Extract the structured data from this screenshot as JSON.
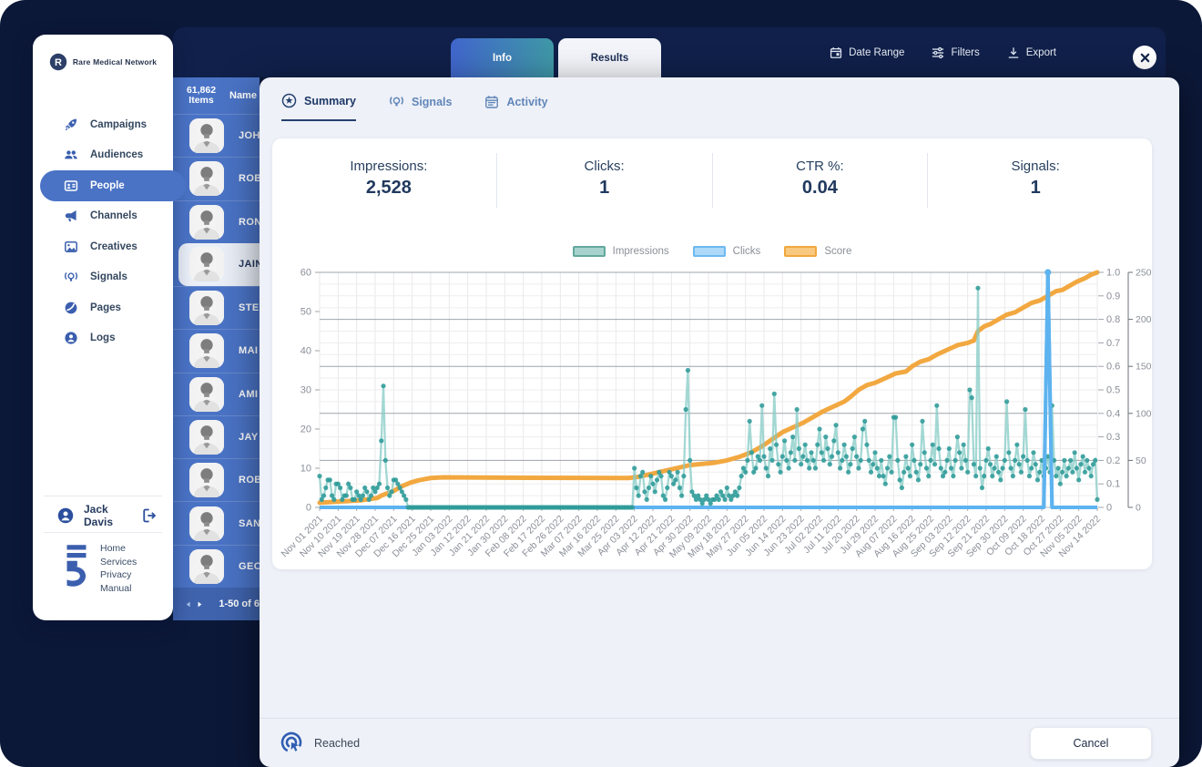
{
  "colors": {
    "bg_navy": "#0c1838",
    "panel_blue": "#4a73c5",
    "accent_blue": "#3b5fae",
    "modal_bg": "#eef1f8",
    "impressions_dot": "#2f9b98",
    "impressions_line": "#84cbc5",
    "clicks": "#5db3ef",
    "score": "#f2a840"
  },
  "sidebar": {
    "brand": "Rare Medical Network",
    "items": [
      {
        "label": "Campaigns"
      },
      {
        "label": "Audiences"
      },
      {
        "label": "People"
      },
      {
        "label": "Channels"
      },
      {
        "label": "Creatives"
      },
      {
        "label": "Signals"
      },
      {
        "label": "Pages"
      },
      {
        "label": "Logs"
      }
    ],
    "active_item": "People",
    "user": "Jack Davis",
    "footer_links": [
      {
        "label": "Home"
      },
      {
        "label": "Services"
      },
      {
        "label": "Privacy"
      },
      {
        "label": "Manual"
      }
    ]
  },
  "people": {
    "count_line1": "61,862",
    "count_line2": "Items",
    "name_header": "Name",
    "rows": [
      {
        "name": "JOH"
      },
      {
        "name": "ROB"
      },
      {
        "name": "RON"
      },
      {
        "name": "JAIN"
      },
      {
        "name": "STE"
      },
      {
        "name": "MAI"
      },
      {
        "name": "AMI"
      },
      {
        "name": "JAY"
      },
      {
        "name": "ROB"
      },
      {
        "name": "SAN"
      },
      {
        "name": "GEO"
      }
    ],
    "selected_index": 3,
    "pagination": "1-50 of 6"
  },
  "modal": {
    "tabs": {
      "info": "Info",
      "results": "Results"
    },
    "controls": {
      "date_range": "Date Range",
      "filters": "Filters",
      "export": "Export"
    },
    "inner_tabs": [
      {
        "label": "Summary"
      },
      {
        "label": "Signals"
      },
      {
        "label": "Activity"
      }
    ],
    "stats": [
      {
        "label": "Impressions:",
        "value": "2,528"
      },
      {
        "label": "Clicks:",
        "value": "1"
      },
      {
        "label": "CTR %:",
        "value": "0.04"
      },
      {
        "label": "Signals:",
        "value": "1"
      }
    ],
    "footer": {
      "status": "Reached",
      "cancel": "Cancel"
    }
  },
  "chart_data": {
    "type": "line",
    "x_days_span": 378,
    "x_tick_step_days": 9,
    "x_tick_labels": [
      "Nov 01 2021",
      "Nov 10 2021",
      "Nov 19 2021",
      "Nov 28 2021",
      "Dec 07 2021",
      "Dec 16 2021",
      "Dec 25 2021",
      "Jan 03 2022",
      "Jan 12 2022",
      "Jan 21 2022",
      "Jan 30 2022",
      "Feb 08 2022",
      "Feb 17 2022",
      "Feb 26 2022",
      "Mar 07 2022",
      "Mar 16 2022",
      "Mar 25 2022",
      "Apr 03 2022",
      "Apr 12 2022",
      "Apr 21 2022",
      "Apr 30 2022",
      "May 09 2022",
      "May 18 2022",
      "May 27 2022",
      "Jun 05 2022",
      "Jun 14 2022",
      "Jun 23 2022",
      "Jul 02 2022",
      "Jul 11 2022",
      "Jul 20 2022",
      "Jul 29 2022",
      "Aug 07 2022",
      "Aug 16 2022",
      "Aug 25 2022",
      "Sep 03 2022",
      "Sep 12 2022",
      "Sep 21 2022",
      "Sep 30 2022",
      "Oct 09 2022",
      "Oct 18 2022",
      "Oct 27 2022",
      "Nov 05 2022",
      "Nov 14 2022"
    ],
    "y_left": {
      "min": 0,
      "max": 60,
      "ticks": [
        0,
        10,
        20,
        30,
        40,
        50,
        60
      ]
    },
    "y_right_ratio": {
      "min": 0,
      "max": 1,
      "ticks": [
        "0",
        "0.1",
        "0.2",
        "0.3",
        "0.4",
        "0.5",
        "0.6",
        "0.7",
        "0.8",
        "0.9",
        "1.0"
      ]
    },
    "y_right_count": {
      "min": 0,
      "max": 250,
      "ticks": [
        0,
        50,
        100,
        150,
        200,
        250
      ]
    },
    "legend": [
      {
        "label": "Impressions",
        "fill": "#a7d3cc",
        "border": "#63a89e"
      },
      {
        "label": "Clicks",
        "fill": "#aed9f8",
        "border": "#6db9f1"
      },
      {
        "label": "Score",
        "fill": "#f8c97e",
        "border": "#f0a73e"
      }
    ],
    "series": [
      {
        "name": "Impressions",
        "axis": "left",
        "daily_values": [
          8,
          2,
          3,
          5,
          7,
          7,
          3,
          2,
          6,
          6,
          5,
          2,
          3,
          3,
          6,
          5,
          2,
          2,
          4,
          3,
          2,
          3,
          5,
          4,
          2,
          3,
          5,
          4,
          5,
          6,
          17,
          31,
          12,
          5,
          3,
          4,
          7,
          7,
          6,
          5,
          4,
          3,
          2,
          0,
          0,
          0,
          0,
          0,
          0,
          0,
          0,
          0,
          0,
          0,
          0,
          0,
          0,
          0,
          0,
          0,
          0,
          0,
          0,
          0,
          0,
          0,
          0,
          0,
          0,
          0,
          0,
          0,
          0,
          0,
          0,
          0,
          0,
          0,
          0,
          0,
          0,
          0,
          0,
          0,
          0,
          0,
          0,
          0,
          0,
          0,
          0,
          0,
          0,
          0,
          0,
          0,
          0,
          0,
          0,
          0,
          0,
          0,
          0,
          0,
          0,
          0,
          0,
          0,
          0,
          0,
          0,
          0,
          0,
          0,
          0,
          0,
          0,
          0,
          0,
          0,
          0,
          0,
          0,
          0,
          0,
          0,
          0,
          0,
          0,
          0,
          0,
          0,
          0,
          0,
          0,
          0,
          0,
          0,
          0,
          0,
          0,
          0,
          0,
          0,
          0,
          0,
          0,
          0,
          0,
          0,
          0,
          0,
          0,
          10,
          5,
          3,
          8,
          9,
          4,
          2,
          5,
          8,
          6,
          4,
          7,
          9,
          8,
          3,
          2,
          5,
          9,
          8,
          6,
          7,
          9,
          5,
          3,
          8,
          25,
          35,
          12,
          4,
          3,
          2,
          3,
          2,
          1,
          2,
          3,
          2,
          1,
          2,
          2,
          3,
          2,
          4,
          3,
          2,
          5,
          3,
          2,
          3,
          4,
          3,
          5,
          8,
          10,
          9,
          12,
          22,
          14,
          9,
          10,
          13,
          12,
          26,
          13,
          10,
          8,
          15,
          12,
          29,
          16,
          11,
          9,
          13,
          17,
          12,
          10,
          14,
          18,
          12,
          25,
          15,
          11,
          13,
          16,
          12,
          10,
          14,
          12,
          10,
          16,
          20,
          14,
          12,
          18,
          15,
          11,
          13,
          17,
          21,
          14,
          10,
          12,
          16,
          13,
          9,
          11,
          15,
          18,
          13,
          10,
          12,
          20,
          22,
          16,
          12,
          9,
          11,
          14,
          10,
          8,
          12,
          8,
          6,
          10,
          13,
          9,
          23,
          23,
          12,
          7,
          5,
          9,
          13,
          10,
          8,
          16,
          12,
          9,
          7,
          11,
          22,
          14,
          10,
          8,
          12,
          16,
          11,
          26,
          15,
          10,
          8,
          9,
          12,
          15,
          10,
          8,
          12,
          18,
          14,
          10,
          16,
          12,
          9,
          30,
          28,
          11,
          8,
          56,
          10,
          5,
          8,
          12,
          15,
          11,
          8,
          10,
          13,
          9,
          7,
          10,
          12,
          27,
          14,
          10,
          8,
          12,
          16,
          11,
          9,
          13,
          25,
          12,
          8,
          10,
          14,
          11,
          7,
          9,
          12,
          8,
          10,
          13,
          9,
          26,
          12,
          8,
          10,
          6,
          9,
          12,
          8,
          10,
          12,
          9,
          14,
          10,
          7,
          11,
          13,
          9,
          12,
          10,
          8,
          11,
          12,
          2
        ]
      },
      {
        "name": "Clicks",
        "axis": "right_ratio",
        "points": [
          [
            0,
            0
          ],
          [
            352,
            0
          ],
          [
            354,
            1
          ],
          [
            356,
            0
          ],
          [
            378,
            0
          ]
        ],
        "spike_day": 354,
        "spike_value": 1
      },
      {
        "name": "Score",
        "axis": "right_ratio",
        "points": [
          [
            0,
            0.02
          ],
          [
            10,
            0.025
          ],
          [
            20,
            0.03
          ],
          [
            28,
            0.04
          ],
          [
            30,
            0.05
          ],
          [
            33,
            0.06
          ],
          [
            36,
            0.07
          ],
          [
            40,
            0.09
          ],
          [
            44,
            0.105
          ],
          [
            48,
            0.115
          ],
          [
            54,
            0.125
          ],
          [
            60,
            0.128
          ],
          [
            100,
            0.126
          ],
          [
            150,
            0.125
          ],
          [
            155,
            0.13
          ],
          [
            160,
            0.14
          ],
          [
            165,
            0.15
          ],
          [
            170,
            0.16
          ],
          [
            175,
            0.17
          ],
          [
            180,
            0.18
          ],
          [
            186,
            0.185
          ],
          [
            192,
            0.19
          ],
          [
            198,
            0.2
          ],
          [
            204,
            0.215
          ],
          [
            210,
            0.235
          ],
          [
            215,
            0.26
          ],
          [
            220,
            0.29
          ],
          [
            225,
            0.32
          ],
          [
            230,
            0.34
          ],
          [
            235,
            0.36
          ],
          [
            240,
            0.385
          ],
          [
            245,
            0.41
          ],
          [
            250,
            0.43
          ],
          [
            255,
            0.45
          ],
          [
            258,
            0.47
          ],
          [
            262,
            0.5
          ],
          [
            266,
            0.52
          ],
          [
            270,
            0.53
          ],
          [
            275,
            0.55
          ],
          [
            280,
            0.57
          ],
          [
            285,
            0.578
          ],
          [
            288,
            0.6
          ],
          [
            292,
            0.62
          ],
          [
            296,
            0.63
          ],
          [
            300,
            0.65
          ],
          [
            305,
            0.67
          ],
          [
            310,
            0.69
          ],
          [
            315,
            0.7
          ],
          [
            318,
            0.71
          ],
          [
            320,
            0.75
          ],
          [
            323,
            0.77
          ],
          [
            326,
            0.78
          ],
          [
            330,
            0.8
          ],
          [
            334,
            0.82
          ],
          [
            338,
            0.83
          ],
          [
            342,
            0.85
          ],
          [
            346,
            0.87
          ],
          [
            350,
            0.88
          ],
          [
            354,
            0.9
          ],
          [
            358,
            0.92
          ],
          [
            361,
            0.925
          ],
          [
            364,
            0.94
          ],
          [
            368,
            0.96
          ],
          [
            372,
            0.975
          ],
          [
            375,
            0.99
          ],
          [
            378,
            1.0
          ]
        ]
      }
    ]
  }
}
